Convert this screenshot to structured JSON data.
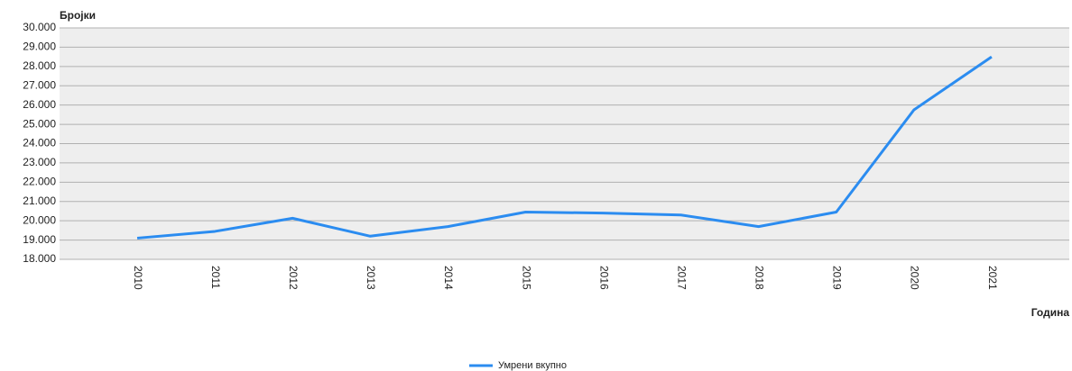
{
  "chart_data": {
    "type": "line",
    "y_label": "Бројки",
    "x_label": "Година",
    "categories": [
      "2010",
      "2011",
      "2012",
      "2013",
      "2014",
      "2015",
      "2016",
      "2017",
      "2018",
      "2019",
      "2020",
      "2021"
    ],
    "series": [
      {
        "name": "Умрени вкупно",
        "color": "#2b8cf0",
        "values": [
          19100,
          19450,
          20130,
          19200,
          19700,
          20450,
          20400,
          20300,
          19700,
          20450,
          25750,
          28500
        ]
      }
    ],
    "ylim": [
      18000,
      30000
    ],
    "yticks": [
      {
        "value": 18000,
        "label": "18.000"
      },
      {
        "value": 19000,
        "label": "19.000"
      },
      {
        "value": 20000,
        "label": "20.000"
      },
      {
        "value": 21000,
        "label": "21.000"
      },
      {
        "value": 22000,
        "label": "22.000"
      },
      {
        "value": 23000,
        "label": "23.000"
      },
      {
        "value": 24000,
        "label": "24.000"
      },
      {
        "value": 25000,
        "label": "25.000"
      },
      {
        "value": 26000,
        "label": "26.000"
      },
      {
        "value": 27000,
        "label": "27.000"
      },
      {
        "value": 28000,
        "label": "28.000"
      },
      {
        "value": 29000,
        "label": "29.000"
      },
      {
        "value": 30000,
        "label": "30.000"
      }
    ],
    "grid": true,
    "legend": "bottom"
  }
}
